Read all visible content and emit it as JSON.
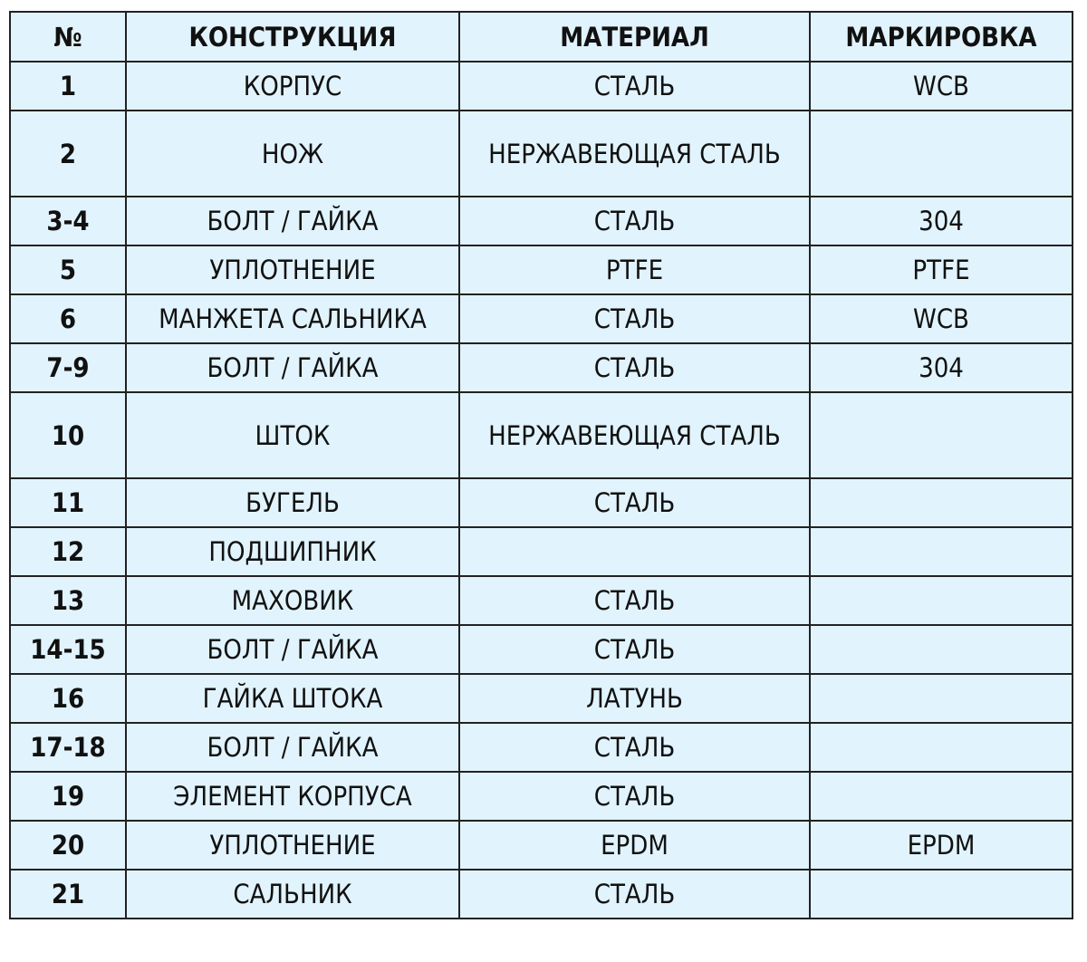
{
  "headers": [
    "№",
    "КОНСТРУКЦИЯ",
    "МАТЕРИАЛ",
    "МАРКИРОВКА"
  ],
  "rows": [
    {
      "num": "1",
      "part": "КОРПУС",
      "material": "СТАЛЬ",
      "marking": "WCB"
    },
    {
      "num": "2",
      "part": "НОЖ",
      "material": "НЕРЖАВЕЮЩАЯ СТАЛЬ",
      "marking": ""
    },
    {
      "num": "3-4",
      "part": "БОЛТ / ГАЙКА",
      "material": "СТАЛЬ",
      "marking": "304"
    },
    {
      "num": "5",
      "part": "УПЛОТНЕНИЕ",
      "material": "PTFE",
      "marking": "PTFE"
    },
    {
      "num": "6",
      "part": "МАНЖЕТА САЛЬНИКА",
      "material": "СТАЛЬ",
      "marking": "WCB"
    },
    {
      "num": "7-9",
      "part": "БОЛТ / ГАЙКА",
      "material": "СТАЛЬ",
      "marking": "304"
    },
    {
      "num": "10",
      "part": "ШТОК",
      "material": "НЕРЖАВЕЮЩАЯ СТАЛЬ",
      "marking": ""
    },
    {
      "num": "11",
      "part": "БУГЕЛЬ",
      "material": "СТАЛЬ",
      "marking": ""
    },
    {
      "num": "12",
      "part": "ПОДШИПНИК",
      "material": "",
      "marking": ""
    },
    {
      "num": "13",
      "part": "МАХОВИК",
      "material": "СТАЛЬ",
      "marking": ""
    },
    {
      "num": "14-15",
      "part": "БОЛТ / ГАЙКА",
      "material": "СТАЛЬ",
      "marking": ""
    },
    {
      "num": "16",
      "part": "ГАЙКА ШТОКА",
      "material": "ЛАТУНЬ",
      "marking": ""
    },
    {
      "num": "17-18",
      "part": "БОЛТ / ГАЙКА",
      "material": "СТАЛЬ",
      "marking": ""
    },
    {
      "num": "19",
      "part": "ЭЛЕМЕНТ КОРПУСА",
      "material": "СТАЛЬ",
      "marking": ""
    },
    {
      "num": "20",
      "part": "УПЛОТНЕНИЕ",
      "material": "EPDM",
      "marking": "EPDM"
    },
    {
      "num": "21",
      "part": "САЛЬНИК",
      "material": "СТАЛЬ",
      "marking": ""
    }
  ]
}
